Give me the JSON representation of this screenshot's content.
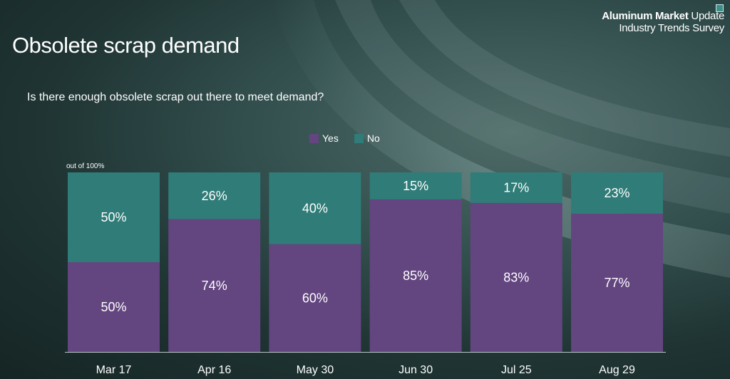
{
  "brand": {
    "title_strong": "Aluminum Market",
    "title_rest": "Update",
    "subtitle": "Industry Trends Survey"
  },
  "title": "Obsolete scrap demand",
  "question": "Is there enough obsolete scrap out there to meet demand?",
  "colors": {
    "yes": "#634580",
    "no": "#2f7c78",
    "baseline": "#b9c5c4"
  },
  "chart_data": {
    "type": "bar",
    "stacked": true,
    "categories": [
      "Mar 17",
      "Apr 16",
      "May 30",
      "Jun 30",
      "Jul 25",
      "Aug 29"
    ],
    "series": [
      {
        "name": "Yes",
        "values": [
          50,
          74,
          60,
          85,
          83,
          77
        ]
      },
      {
        "name": "No",
        "values": [
          50,
          26,
          40,
          15,
          17,
          23
        ]
      }
    ],
    "value_suffix": "%",
    "unit_label": "out of 100%",
    "ylim": [
      0,
      100
    ],
    "legend": "top-center",
    "grid": false
  }
}
